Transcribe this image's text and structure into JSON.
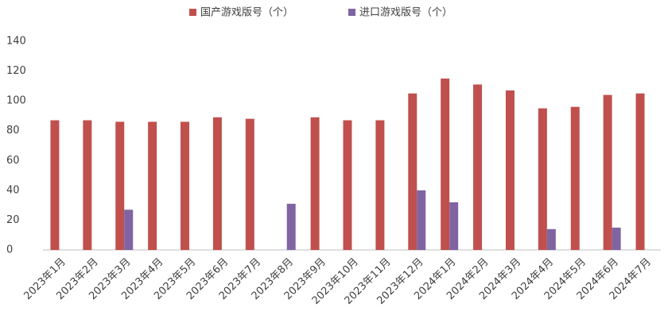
{
  "chart_data": {
    "type": "bar",
    "categories": [
      "2023年1月",
      "2023年2月",
      "2023年3月",
      "2023年4月",
      "2023年5月",
      "2023年6月",
      "2023年7月",
      "2023年8月",
      "2023年9月",
      "2023年10月",
      "2023年11月",
      "2023年12月",
      "2024年1月",
      "2024年2月",
      "2024年3月",
      "2024年4月",
      "2024年5月",
      "2024年6月",
      "2024年7月"
    ],
    "series": [
      {
        "name": "国产游戏版号（个）",
        "color": "#c0504d",
        "values": [
          87,
          87,
          86,
          86,
          86,
          89,
          88,
          null,
          89,
          87,
          87,
          105,
          115,
          111,
          107,
          95,
          96,
          104,
          105
        ]
      },
      {
        "name": "进口游戏版号（个）",
        "color": "#8064a2",
        "values": [
          null,
          null,
          27,
          null,
          null,
          null,
          null,
          31,
          null,
          null,
          null,
          40,
          32,
          null,
          null,
          14,
          null,
          15,
          null
        ]
      }
    ],
    "ylim": [
      0,
      140
    ],
    "yticks": [
      0,
      20,
      40,
      60,
      80,
      100,
      120,
      140
    ],
    "grid": false,
    "legend": "top"
  }
}
